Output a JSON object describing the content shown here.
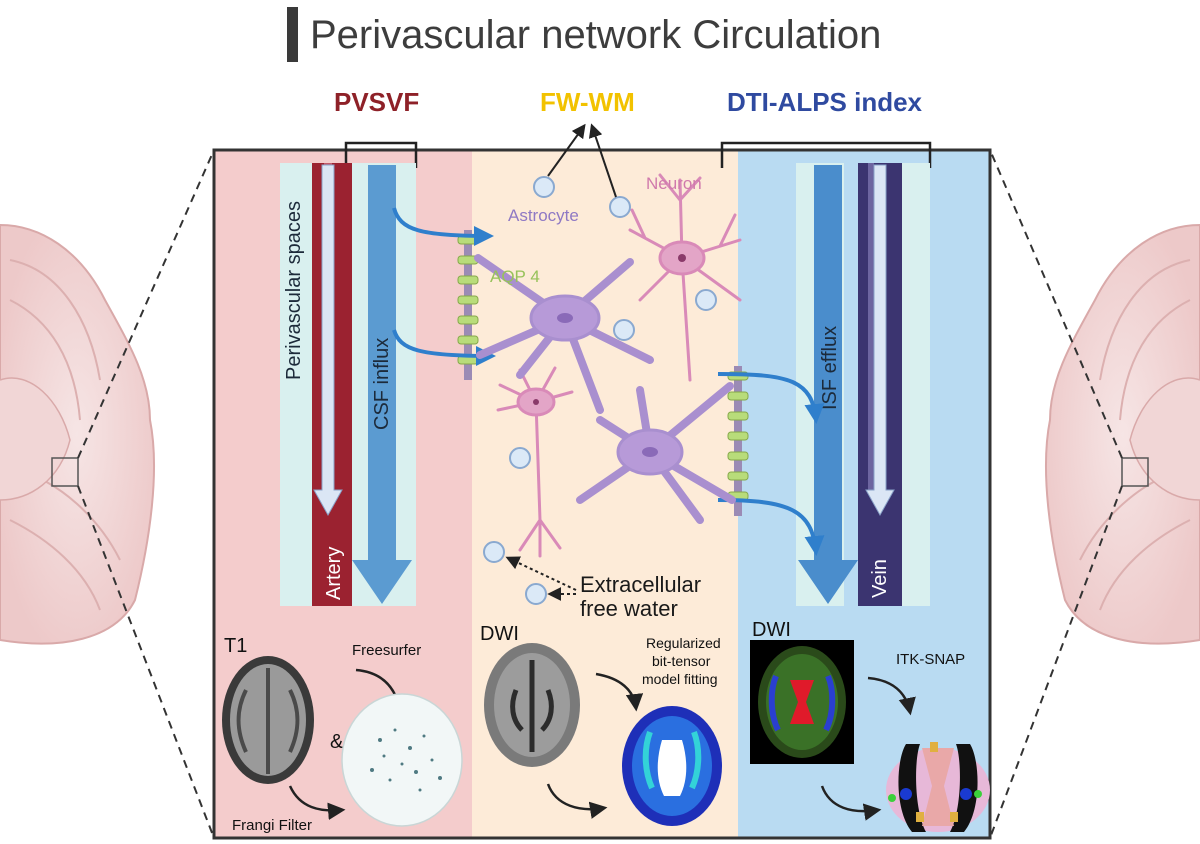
{
  "title": "Perivascular network Circulation",
  "metrics": {
    "pvsvf": {
      "label": "PVSVF",
      "color": "#8e2128"
    },
    "fwwm": {
      "label": "FW-WM",
      "color": "#f2c200"
    },
    "dtialps": {
      "label": "DTI-ALPS index",
      "color": "#2f4aa0"
    }
  },
  "labels": {
    "perivascular_spaces": "Perivascular spaces",
    "csf_influx": "CSF influx",
    "artery": "Artery",
    "astrocyte": "Astrocyte",
    "neuron": "Neuron",
    "aqp4": "AQP 4",
    "extracellular_line1": "Extracellular",
    "extracellular_line2": "free water",
    "isf_efflux": "ISF efflux",
    "vein": "Vein"
  },
  "panels": {
    "left": {
      "modality": "T1",
      "step1": "Freesurfer",
      "and": "&",
      "step2": "Frangi Filter"
    },
    "middle": {
      "modality": "DWI",
      "fit_line1": "Regularized",
      "fit_line2": "bit-tensor",
      "fit_line3": "model fitting"
    },
    "right": {
      "modality": "DWI",
      "tool": "ITK-SNAP"
    }
  },
  "colors": {
    "pink_panel": "#f4cccc",
    "beige_panel": "#fdebd8",
    "blue_panel": "#b9dbf2",
    "artery": "#9b2230",
    "vein": "#3b3470",
    "flow_arrow": "#3f8ed0",
    "astrocyte": "#b79ad8",
    "neuron": "#d98ab8",
    "aqp4": "#b8dc7a"
  }
}
